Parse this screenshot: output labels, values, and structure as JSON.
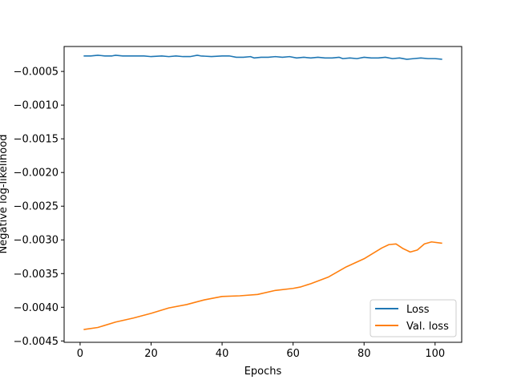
{
  "chart_data": {
    "type": "line",
    "title": "",
    "xlabel": "Epochs",
    "ylabel": "Negative log-likelihood",
    "xlim": [
      -4.5,
      107.5
    ],
    "ylim": [
      -0.00452,
      -0.00013
    ],
    "xticks": [
      0,
      20,
      40,
      60,
      80,
      100
    ],
    "yticks": [
      -0.0045,
      -0.004,
      -0.0035,
      -0.003,
      -0.0025,
      -0.002,
      -0.0015,
      -0.001,
      -0.0005
    ],
    "xtick_labels": [
      "0",
      "20",
      "40",
      "60",
      "80",
      "100"
    ],
    "ytick_labels": [
      "−0.0045",
      "−0.0040",
      "−0.0035",
      "−0.0030",
      "−0.0025",
      "−0.0020",
      "−0.0015",
      "−0.0010",
      "−0.0005"
    ],
    "grid": false,
    "legend_position": "lower-right",
    "series": [
      {
        "name": "Loss",
        "color": "#1f77b4",
        "points": [
          [
            1,
            -0.00027
          ],
          [
            3,
            -0.00027
          ],
          [
            5,
            -0.00026
          ],
          [
            7,
            -0.00027
          ],
          [
            9,
            -0.00027
          ],
          [
            10,
            -0.00026
          ],
          [
            12,
            -0.00027
          ],
          [
            15,
            -0.00027
          ],
          [
            18,
            -0.00027
          ],
          [
            20,
            -0.00028
          ],
          [
            23,
            -0.00027
          ],
          [
            25,
            -0.00028
          ],
          [
            27,
            -0.00027
          ],
          [
            29,
            -0.00028
          ],
          [
            31,
            -0.00028
          ],
          [
            33,
            -0.00026
          ],
          [
            34,
            -0.00027
          ],
          [
            37,
            -0.00028
          ],
          [
            40,
            -0.00027
          ],
          [
            42,
            -0.00027
          ],
          [
            44,
            -0.00029
          ],
          [
            46,
            -0.00029
          ],
          [
            48,
            -0.00028
          ],
          [
            49,
            -0.0003
          ],
          [
            51,
            -0.00029
          ],
          [
            53,
            -0.00029
          ],
          [
            55,
            -0.00028
          ],
          [
            57,
            -0.00029
          ],
          [
            59,
            -0.00028
          ],
          [
            61,
            -0.0003
          ],
          [
            63,
            -0.00029
          ],
          [
            65,
            -0.0003
          ],
          [
            67,
            -0.00029
          ],
          [
            69,
            -0.0003
          ],
          [
            71,
            -0.0003
          ],
          [
            73,
            -0.00029
          ],
          [
            74,
            -0.00031
          ],
          [
            76,
            -0.0003
          ],
          [
            78,
            -0.00031
          ],
          [
            80,
            -0.00029
          ],
          [
            82,
            -0.0003
          ],
          [
            84,
            -0.0003
          ],
          [
            86,
            -0.00029
          ],
          [
            88,
            -0.00031
          ],
          [
            90,
            -0.0003
          ],
          [
            92,
            -0.00032
          ],
          [
            94,
            -0.00031
          ],
          [
            96,
            -0.0003
          ],
          [
            98,
            -0.00031
          ],
          [
            100,
            -0.00031
          ],
          [
            102,
            -0.00032
          ]
        ]
      },
      {
        "name": "Val. loss",
        "color": "#ff7f0e",
        "points": [
          [
            1,
            -0.00433
          ],
          [
            5,
            -0.0043
          ],
          [
            10,
            -0.00422
          ],
          [
            15,
            -0.00416
          ],
          [
            20,
            -0.00409
          ],
          [
            25,
            -0.00401
          ],
          [
            30,
            -0.00396
          ],
          [
            35,
            -0.00389
          ],
          [
            40,
            -0.00384
          ],
          [
            45,
            -0.00383
          ],
          [
            50,
            -0.00381
          ],
          [
            55,
            -0.00375
          ],
          [
            60,
            -0.00372
          ],
          [
            62,
            -0.0037
          ],
          [
            65,
            -0.00365
          ],
          [
            70,
            -0.00355
          ],
          [
            75,
            -0.0034
          ],
          [
            80,
            -0.00328
          ],
          [
            85,
            -0.00312
          ],
          [
            87,
            -0.00307
          ],
          [
            89,
            -0.00306
          ],
          [
            91,
            -0.00313
          ],
          [
            93,
            -0.00318
          ],
          [
            95,
            -0.00315
          ],
          [
            97,
            -0.00306
          ],
          [
            99,
            -0.00303
          ],
          [
            102,
            -0.00305
          ]
        ]
      }
    ]
  }
}
